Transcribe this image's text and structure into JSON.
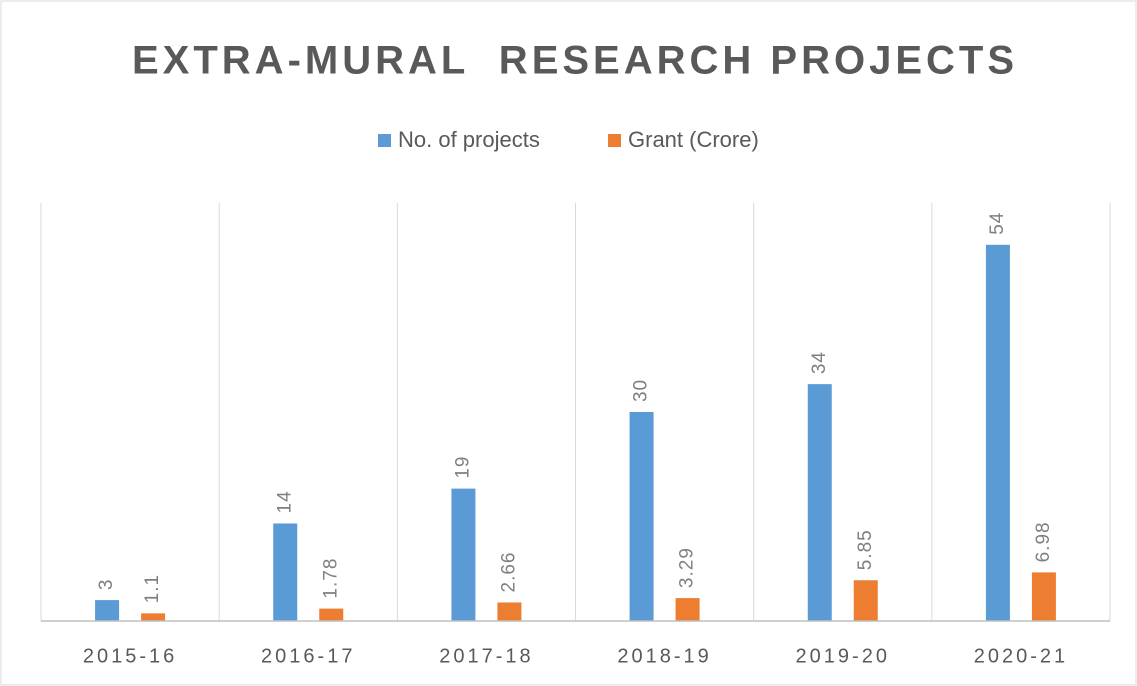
{
  "chart_data": {
    "type": "bar",
    "title": "EXTRA-MURAL  RESEARCH PROJECTS",
    "categories": [
      "2015-16",
      "2016-17",
      "2017-18",
      "2018-19",
      "2019-20",
      "2020-21"
    ],
    "series": [
      {
        "name": "No. of projects",
        "color": "#5b9bd5",
        "values": [
          3,
          14,
          19,
          30,
          34,
          54
        ]
      },
      {
        "name": "Grant (Crore)",
        "color": "#ed7d31",
        "values": [
          1.1,
          1.78,
          2.66,
          3.29,
          5.85,
          6.98
        ]
      }
    ],
    "ylim": [
      0,
      60
    ]
  }
}
